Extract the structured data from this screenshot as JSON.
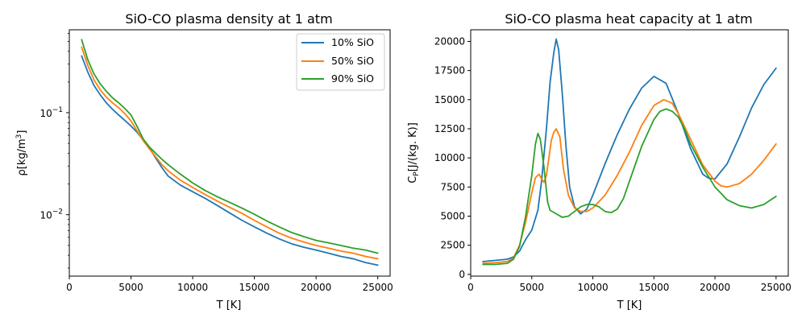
{
  "chart_data": [
    {
      "type": "line",
      "title": "SiO-CO plasma density at 1 atm",
      "xlabel": "T [K]",
      "ylabel": "ρ[kg/m",
      "ylabel_sup": "3",
      "ylabel_end": "]",
      "yscale": "log",
      "xlim": [
        0,
        26000
      ],
      "ylim": [
        0.0025,
        0.65
      ],
      "xticks": [
        0,
        5000,
        10000,
        15000,
        20000,
        25000
      ],
      "xtick_labels": [
        "0",
        "5000",
        "10000",
        "15000",
        "20000",
        "25000"
      ],
      "yticks": [
        0.01,
        0.1
      ],
      "ytick_labels": [
        {
          "base": "10",
          "exp": "−2"
        },
        {
          "base": "10",
          "exp": "−1"
        }
      ],
      "legend_position": "top-right",
      "x": [
        1000,
        1500,
        2000,
        2500,
        3000,
        3500,
        4000,
        4500,
        5000,
        5500,
        6000,
        6500,
        7000,
        7500,
        8000,
        9000,
        10000,
        11000,
        12000,
        13000,
        14000,
        15000,
        16000,
        17000,
        18000,
        19000,
        20000,
        21000,
        22000,
        23000,
        24000,
        25000
      ],
      "series": [
        {
          "name": "10% SiO",
          "color": "#1f77b4",
          "values": [
            0.36,
            0.25,
            0.185,
            0.15,
            0.125,
            0.108,
            0.095,
            0.084,
            0.074,
            0.064,
            0.054,
            0.045,
            0.036,
            0.029,
            0.024,
            0.0195,
            0.0168,
            0.0145,
            0.0123,
            0.0104,
            0.0088,
            0.0076,
            0.0066,
            0.0058,
            0.0052,
            0.0048,
            0.0045,
            0.0042,
            0.0039,
            0.0037,
            0.0034,
            0.0032
          ]
        },
        {
          "name": "50% SiO",
          "color": "#ff7f0e",
          "values": [
            0.44,
            0.29,
            0.21,
            0.168,
            0.142,
            0.125,
            0.112,
            0.098,
            0.083,
            0.066,
            0.053,
            0.044,
            0.037,
            0.031,
            0.027,
            0.0218,
            0.0185,
            0.0158,
            0.0136,
            0.0118,
            0.0103,
            0.0088,
            0.0076,
            0.0066,
            0.0059,
            0.0054,
            0.005,
            0.0047,
            0.0044,
            0.0042,
            0.0039,
            0.0037
          ]
        },
        {
          "name": "90% SiO",
          "color": "#2ca02c",
          "values": [
            0.52,
            0.33,
            0.24,
            0.192,
            0.162,
            0.14,
            0.125,
            0.11,
            0.095,
            0.073,
            0.055,
            0.046,
            0.04,
            0.035,
            0.031,
            0.025,
            0.0205,
            0.0173,
            0.015,
            0.0132,
            0.0116,
            0.0101,
            0.0087,
            0.0076,
            0.0067,
            0.0061,
            0.0056,
            0.0053,
            0.005,
            0.0047,
            0.0045,
            0.0042
          ]
        }
      ]
    },
    {
      "type": "line",
      "title": "SiO-CO plasma heat capacity at 1 atm",
      "xlabel": "T [K]",
      "ylabel": "C",
      "ylabel_sub": "P",
      "ylabel_end": "[J/(kg. K)]",
      "yscale": "linear",
      "xlim": [
        0,
        26000
      ],
      "ylim": [
        -150,
        21000
      ],
      "xticks": [
        0,
        5000,
        10000,
        15000,
        20000,
        25000
      ],
      "xtick_labels": [
        "0",
        "5000",
        "10000",
        "15000",
        "20000",
        "25000"
      ],
      "yticks": [
        0,
        2500,
        5000,
        7500,
        10000,
        12500,
        15000,
        17500,
        20000
      ],
      "ytick_labels": [
        "0",
        "2500",
        "5000",
        "7500",
        "10000",
        "12500",
        "15000",
        "17500",
        "20000"
      ],
      "series": [
        {
          "name": "10% SiO",
          "color": "#1f77b4",
          "x": [
            1000,
            2000,
            3000,
            3500,
            4000,
            4500,
            5000,
            5500,
            5800,
            6200,
            6500,
            6800,
            7000,
            7200,
            7500,
            7800,
            8100,
            8500,
            9000,
            9500,
            10000,
            11000,
            12000,
            13000,
            14000,
            15000,
            16000,
            17000,
            18000,
            19000,
            19500,
            20000,
            21000,
            22000,
            23000,
            24000,
            25000
          ],
          "values": [
            1100,
            1200,
            1300,
            1500,
            2000,
            3000,
            3800,
            5500,
            8000,
            12500,
            16500,
            19000,
            20200,
            19300,
            15500,
            11000,
            7500,
            5800,
            5200,
            5600,
            6800,
            9500,
            12000,
            14200,
            16000,
            17000,
            16400,
            13800,
            10800,
            8600,
            8250,
            8200,
            9500,
            11800,
            14300,
            16300,
            17700
          ]
        },
        {
          "name": "50% SiO",
          "color": "#ff7f0e",
          "x": [
            1000,
            2000,
            3000,
            3500,
            4000,
            4500,
            5000,
            5300,
            5600,
            5800,
            6000,
            6200,
            6400,
            6600,
            6800,
            7000,
            7300,
            7600,
            8000,
            8500,
            9000,
            9500,
            10000,
            11000,
            12000,
            13000,
            14000,
            15000,
            15800,
            16500,
            17000,
            18000,
            19000,
            20000,
            20500,
            21000,
            22000,
            23000,
            24000,
            25000
          ],
          "values": [
            950,
            1000,
            1100,
            1400,
            2500,
            4500,
            7000,
            8300,
            8600,
            8200,
            7900,
            8500,
            10000,
            11500,
            12200,
            12500,
            11800,
            9000,
            6800,
            5700,
            5400,
            5400,
            5700,
            6800,
            8500,
            10500,
            12800,
            14500,
            15000,
            14700,
            13800,
            11600,
            9400,
            8000,
            7600,
            7500,
            7800,
            8600,
            9800,
            11200
          ]
        },
        {
          "name": "90% SiO",
          "color": "#2ca02c",
          "x": [
            1000,
            2000,
            3000,
            3500,
            4000,
            4500,
            5000,
            5300,
            5500,
            5700,
            6000,
            6300,
            6500,
            7000,
            7500,
            8000,
            8500,
            9000,
            9500,
            10000,
            10500,
            11000,
            11500,
            12000,
            12500,
            13000,
            14000,
            15000,
            15500,
            16000,
            16500,
            17000,
            17500,
            18000,
            19000,
            20000,
            21000,
            22000,
            23000,
            24000,
            25000
          ],
          "values": [
            850,
            850,
            950,
            1300,
            2400,
            5000,
            8500,
            11200,
            12100,
            11600,
            9200,
            6200,
            5500,
            5200,
            4900,
            5000,
            5400,
            5800,
            6000,
            6000,
            5800,
            5400,
            5300,
            5600,
            6500,
            8000,
            11000,
            13300,
            14000,
            14200,
            14000,
            13500,
            12500,
            11200,
            9200,
            7500,
            6400,
            5900,
            5700,
            6000,
            6700
          ]
        }
      ]
    }
  ]
}
